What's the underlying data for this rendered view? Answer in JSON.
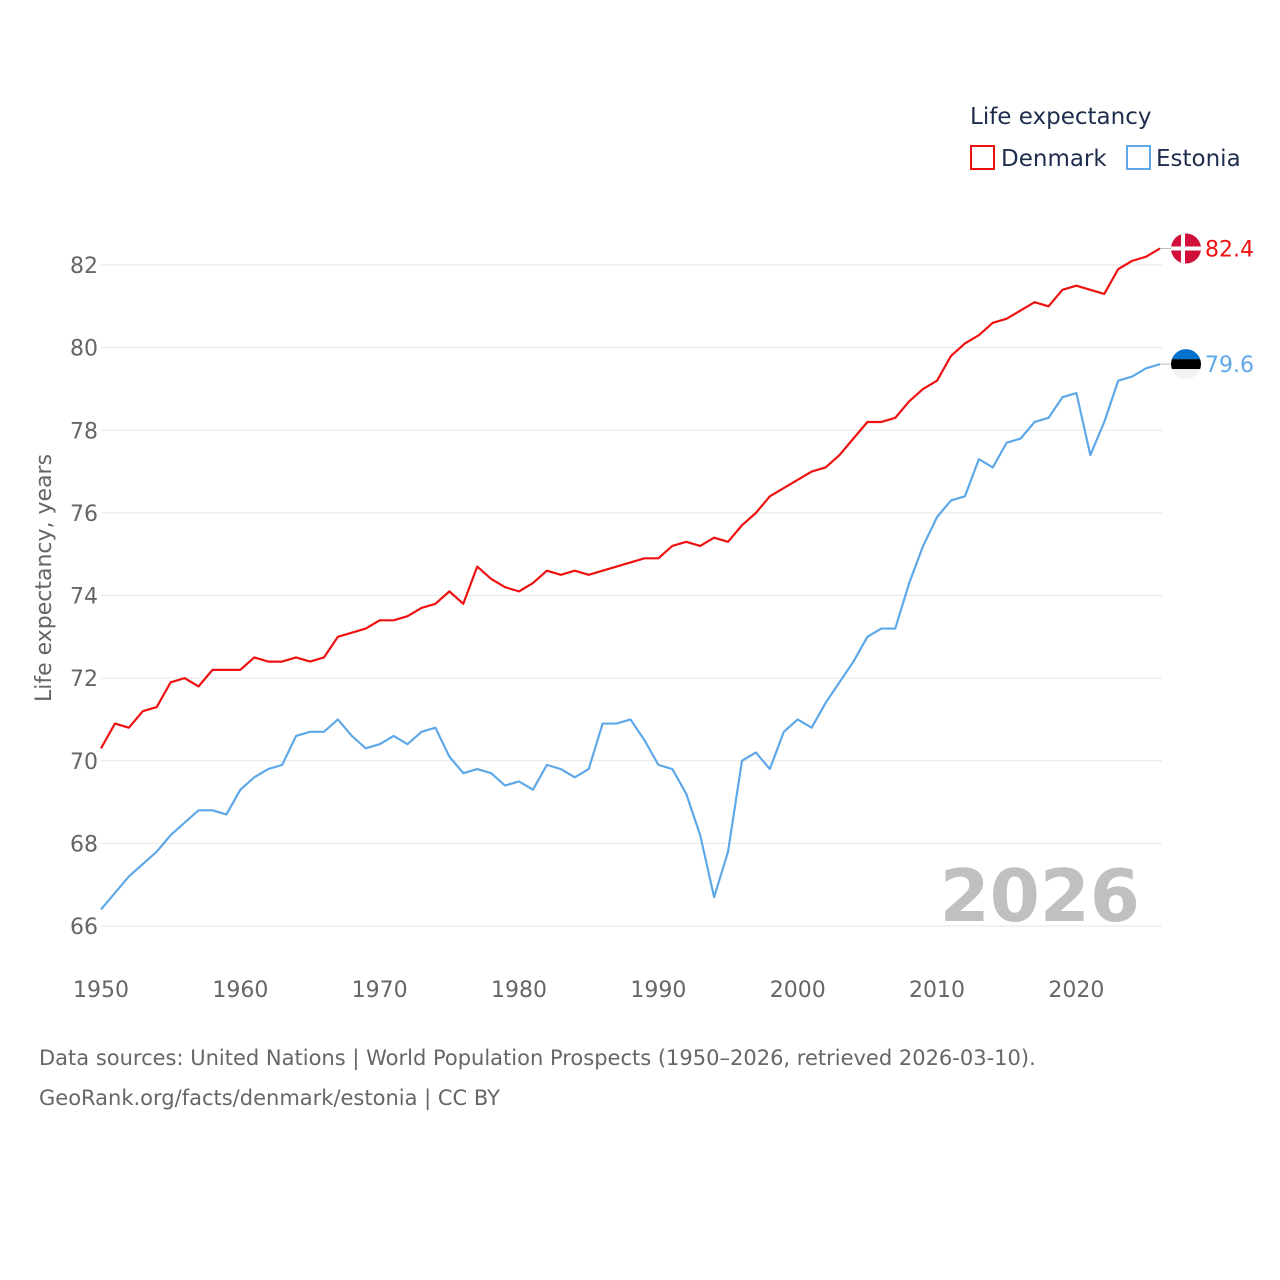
{
  "legend": {
    "title": "Life expectancy"
  },
  "watermark_year": "2026",
  "footer": {
    "line1": "Data sources: United Nations | World Population Prospects (1950–2026, retrieved 2026-03-10).",
    "line2": "GeoRank.org/facts/denmark/estonia | CC BY"
  },
  "chart_data": {
    "type": "line",
    "title": "",
    "xlabel": "",
    "ylabel": "Life expectancy, years",
    "xlim": [
      1950,
      2026
    ],
    "ylim": [
      65.5,
      83.5
    ],
    "x_ticks": [
      1950,
      1960,
      1970,
      1980,
      1990,
      2000,
      2010,
      2020
    ],
    "y_ticks": [
      66,
      68,
      70,
      72,
      74,
      76,
      78,
      80,
      82
    ],
    "grid": true,
    "legend_position": "top-right",
    "x": [
      1950,
      1951,
      1952,
      1953,
      1954,
      1955,
      1956,
      1957,
      1958,
      1959,
      1960,
      1961,
      1962,
      1963,
      1964,
      1965,
      1966,
      1967,
      1968,
      1969,
      1970,
      1971,
      1972,
      1973,
      1974,
      1975,
      1976,
      1977,
      1978,
      1979,
      1980,
      1981,
      1982,
      1983,
      1984,
      1985,
      1986,
      1987,
      1988,
      1989,
      1990,
      1991,
      1992,
      1993,
      1994,
      1995,
      1996,
      1997,
      1998,
      1999,
      2000,
      2001,
      2002,
      2003,
      2004,
      2005,
      2006,
      2007,
      2008,
      2009,
      2010,
      2011,
      2012,
      2013,
      2014,
      2015,
      2016,
      2017,
      2018,
      2019,
      2020,
      2021,
      2022,
      2023,
      2024,
      2025,
      2026
    ],
    "series": [
      {
        "name": "Denmark",
        "color": "#ee1111",
        "flag": "denmark-flag",
        "end_label": "82.4",
        "values": [
          70.3,
          70.9,
          70.8,
          71.2,
          71.3,
          71.9,
          72.0,
          71.8,
          72.2,
          72.2,
          72.2,
          72.5,
          72.4,
          72.4,
          72.5,
          72.4,
          72.5,
          73.0,
          73.1,
          73.2,
          73.4,
          73.4,
          73.5,
          73.7,
          73.8,
          74.1,
          73.8,
          74.7,
          74.4,
          74.2,
          74.1,
          74.3,
          74.6,
          74.5,
          74.6,
          74.5,
          74.6,
          74.7,
          74.8,
          74.9,
          74.9,
          75.2,
          75.3,
          75.2,
          75.4,
          75.3,
          75.7,
          76.0,
          76.4,
          76.6,
          76.8,
          77.0,
          77.1,
          77.4,
          77.8,
          78.2,
          78.2,
          78.3,
          78.7,
          79.0,
          79.2,
          79.8,
          80.1,
          80.3,
          80.6,
          80.7,
          80.9,
          81.1,
          81.0,
          81.4,
          81.5,
          81.4,
          81.3,
          81.9,
          82.1,
          82.2,
          82.4
        ]
      },
      {
        "name": "Estonia",
        "color": "#5fa8e8",
        "flag": "estonia-flag",
        "end_label": "79.6",
        "values": [
          66.4,
          66.8,
          67.2,
          67.5,
          67.8,
          68.2,
          68.5,
          68.8,
          68.8,
          68.7,
          69.3,
          69.6,
          69.8,
          69.9,
          70.6,
          70.7,
          70.7,
          71.0,
          70.6,
          70.3,
          70.4,
          70.6,
          70.4,
          70.7,
          70.8,
          70.1,
          69.7,
          69.8,
          69.7,
          69.4,
          69.5,
          69.3,
          69.9,
          69.8,
          69.6,
          69.8,
          70.9,
          70.9,
          71.0,
          70.5,
          69.9,
          69.8,
          69.2,
          68.2,
          66.7,
          67.8,
          70.0,
          70.2,
          69.8,
          70.7,
          71.0,
          70.8,
          71.4,
          71.9,
          72.4,
          73.0,
          73.2,
          73.2,
          74.3,
          75.2,
          75.9,
          76.3,
          76.4,
          77.3,
          77.1,
          77.7,
          77.8,
          78.2,
          78.3,
          78.8,
          78.9,
          77.4,
          78.2,
          79.2,
          79.3,
          79.5,
          79.6
        ]
      }
    ]
  }
}
